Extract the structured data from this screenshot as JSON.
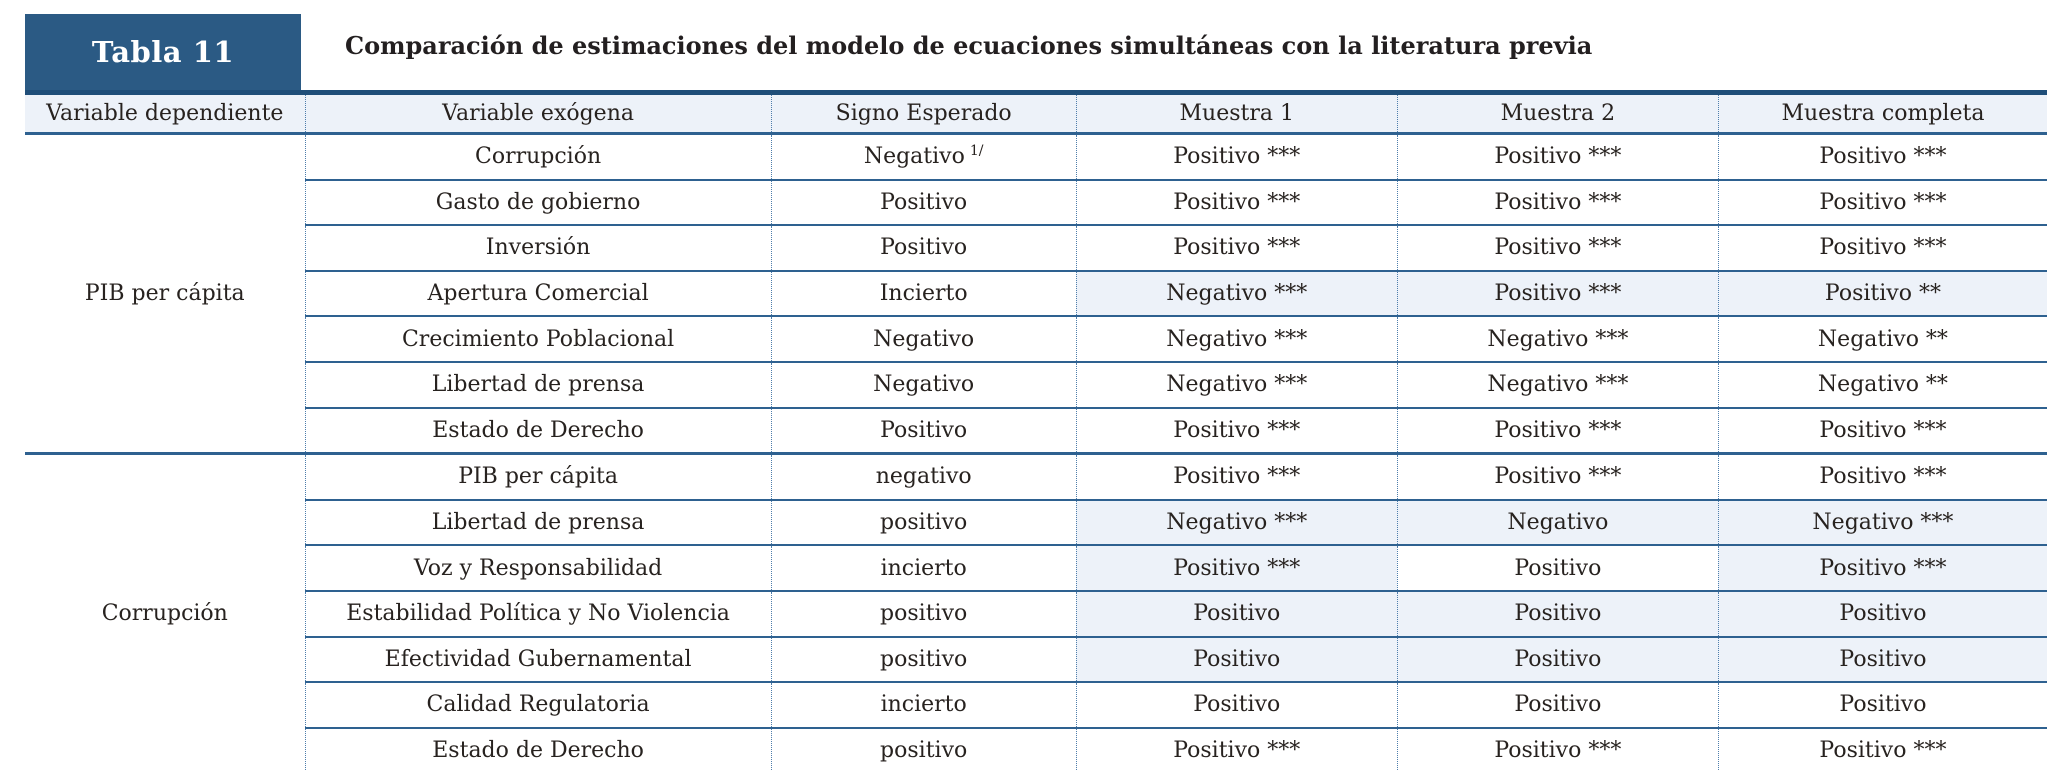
{
  "tag": "Tabla 11",
  "title": "Comparación de estimaciones del modelo de ecuaciones simultáneas con la literatura previa",
  "columns": [
    "Variable dependiente",
    "Variable exógena",
    "Signo Esperado",
    "Muestra 1",
    "Muestra 2",
    "Muestra completa"
  ],
  "colors": {
    "tag_box": "#2b5a84",
    "thick_rule": "#1f4e79",
    "row_rule": "#2e6190",
    "dotted_rule": "#4d7dab",
    "band_bg": "#edf2f9",
    "text": "#27221f"
  },
  "groups": [
    {
      "dependiente": "PIB per cápita",
      "rows": [
        {
          "exogena": "Corrupción",
          "signo": "Negativo",
          "signo_sup": "1/",
          "m1": "Positivo ***",
          "m2": "Positivo ***",
          "mc": "Positivo ***",
          "destacado": [
            false,
            false,
            false
          ]
        },
        {
          "exogena": "Gasto de gobierno",
          "signo": "Positivo",
          "m1": "Positivo ***",
          "m2": "Positivo ***",
          "mc": "Positivo ***",
          "destacado": [
            false,
            false,
            false
          ]
        },
        {
          "exogena": "Inversión",
          "signo": "Positivo",
          "m1": "Positivo ***",
          "m2": "Positivo ***",
          "mc": "Positivo ***",
          "destacado": [
            false,
            false,
            false
          ]
        },
        {
          "exogena": "Apertura Comercial",
          "signo": "Incierto",
          "m1": "Negativo ***",
          "m2": "Positivo ***",
          "mc": "Positivo **",
          "destacado": [
            true,
            true,
            true
          ]
        },
        {
          "exogena": "Crecimiento Poblacional",
          "signo": "Negativo",
          "m1": "Negativo ***",
          "m2": "Negativo ***",
          "mc": "Negativo **",
          "destacado": [
            false,
            false,
            false
          ]
        },
        {
          "exogena": "Libertad de prensa",
          "signo": "Negativo",
          "m1": "Negativo ***",
          "m2": "Negativo ***",
          "mc": "Negativo **",
          "destacado": [
            false,
            false,
            false
          ]
        },
        {
          "exogena": "Estado de Derecho",
          "signo": "Positivo",
          "m1": "Positivo ***",
          "m2": "Positivo ***",
          "mc": "Positivo ***",
          "destacado": [
            false,
            false,
            false
          ]
        }
      ]
    },
    {
      "dependiente": "Corrupción",
      "rows": [
        {
          "exogena": "PIB per cápita",
          "signo": "negativo",
          "m1": "Positivo ***",
          "m2": "Positivo ***",
          "mc": "Positivo ***",
          "destacado": [
            false,
            false,
            false
          ]
        },
        {
          "exogena": "Libertad de prensa",
          "signo": "positivo",
          "m1": "Negativo ***",
          "m2": "Negativo",
          "mc": "Negativo ***",
          "destacado": [
            true,
            true,
            true
          ]
        },
        {
          "exogena": "Voz y Responsabilidad",
          "signo": "incierto",
          "m1": "Positivo ***",
          "m2": "Positivo",
          "mc": "Positivo ***",
          "destacado": [
            true,
            false,
            true
          ]
        },
        {
          "exogena": "Estabilidad Política y No Violencia",
          "signo": "positivo",
          "m1": "Positivo",
          "m2": "Positivo",
          "mc": "Positivo",
          "destacado": [
            true,
            true,
            true
          ]
        },
        {
          "exogena": "Efectividad Gubernamental",
          "signo": "positivo",
          "m1": "Positivo",
          "m2": "Positivo",
          "mc": "Positivo",
          "destacado": [
            true,
            true,
            true
          ]
        },
        {
          "exogena": "Calidad Regulatoria",
          "signo": "incierto",
          "m1": "Positivo",
          "m2": "Positivo",
          "mc": "Positivo",
          "destacado": [
            false,
            false,
            false
          ]
        },
        {
          "exogena": "Estado de Derecho",
          "signo": "positivo",
          "m1": "Positivo ***",
          "m2": "Positivo ***",
          "mc": "Positivo ***",
          "destacado": [
            false,
            false,
            false
          ]
        }
      ]
    }
  ]
}
